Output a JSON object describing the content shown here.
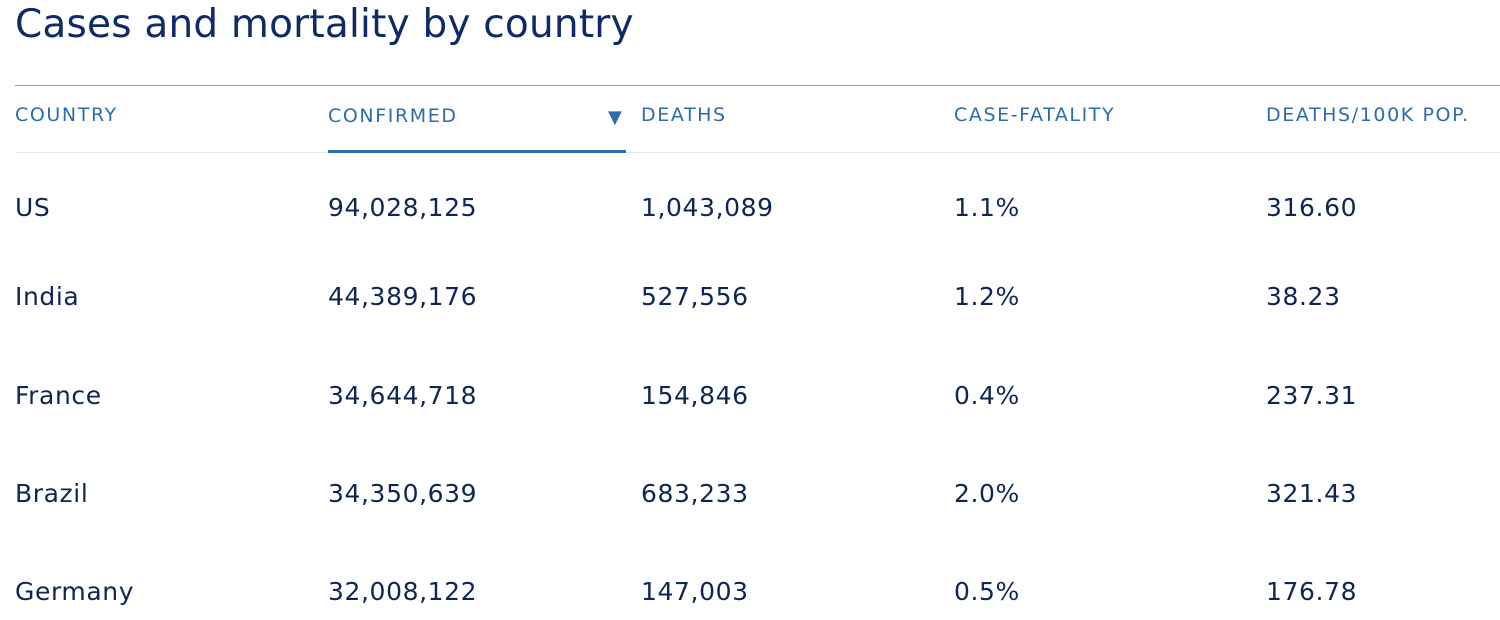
{
  "page": {
    "title": "Cases and mortality by country"
  },
  "table": {
    "columns": [
      {
        "key": "country",
        "label": "COUNTRY"
      },
      {
        "key": "confirmed",
        "label": "CONFIRMED"
      },
      {
        "key": "deaths",
        "label": "DEATHS"
      },
      {
        "key": "case_fatality",
        "label": "CASE-FATALITY"
      },
      {
        "key": "deaths_per_100k",
        "label": "DEATHS/100K POP."
      }
    ],
    "sort": {
      "column": "confirmed",
      "direction": "descending",
      "indicator": "▼"
    },
    "rows": [
      {
        "cells": [
          "US",
          "94,028,125",
          "1,043,089",
          "1.1%",
          "316.60"
        ]
      },
      {
        "cells": [
          "India",
          "44,389,176",
          "527,556",
          "1.2%",
          "38.23"
        ]
      },
      {
        "cells": [
          "France",
          "34,644,718",
          "154,846",
          "0.4%",
          "237.31"
        ]
      },
      {
        "cells": [
          "Brazil",
          "34,350,639",
          "683,233",
          "2.0%",
          "321.43"
        ]
      },
      {
        "cells": [
          "Germany",
          "32,008,122",
          "147,003",
          "0.5%",
          "176.78"
        ]
      }
    ]
  },
  "colors": {
    "title": "#0f2a66",
    "header_text": "#2e6bab",
    "body_text": "#0f2554",
    "rule": "#6fa3cf"
  }
}
